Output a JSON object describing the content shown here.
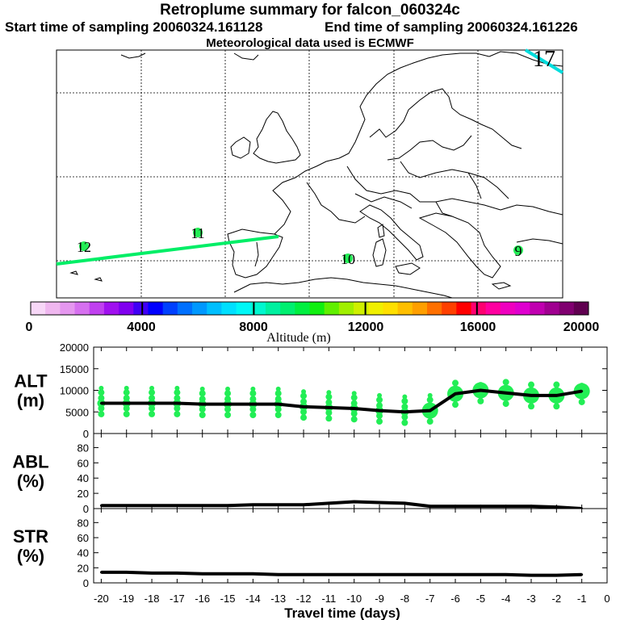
{
  "header": {
    "title": "Retroplume summary for falcon_060324c",
    "start": "Start time of sampling 20060324.161128",
    "end": "End time of sampling 20060324.161226",
    "met": "Meteorological data used is ECMWF"
  },
  "colors": {
    "track": "#00ee66",
    "track_cyan": "#00dddd",
    "marker": "#22ee55",
    "line": "#000000"
  },
  "map": {
    "labels": [
      {
        "text": "12",
        "id": "day-12-label"
      },
      {
        "text": "11",
        "id": "day-11-label"
      },
      {
        "text": "10",
        "id": "day-10-label"
      },
      {
        "text": "9",
        "id": "day-9-label"
      },
      {
        "text": "17",
        "id": "day-17-label"
      }
    ]
  },
  "colorbar": {
    "ticks": [
      "0",
      "4000",
      "8000",
      "12000",
      "16000",
      "20000"
    ],
    "label": "Altitude (m)",
    "colors": [
      "#f7d7f7",
      "#efb7ef",
      "#e597ef",
      "#d670ef",
      "#c040ef",
      "#a010ef",
      "#8000ef",
      "#4000f5",
      "#0000ff",
      "#0040ff",
      "#0070ff",
      "#0098ff",
      "#00bfff",
      "#00dfff",
      "#00f7f7",
      "#00f7cf",
      "#00f0a0",
      "#00ef70",
      "#00ef40",
      "#10ef10",
      "#60ef00",
      "#a0ef00",
      "#cfef00",
      "#f0ef00",
      "#ffdf00",
      "#ffbf00",
      "#ff9f00",
      "#ff7000",
      "#ff4000",
      "#ff0000",
      "#ff0070",
      "#ff00a0",
      "#ef00bf",
      "#df00cf",
      "#c000b0",
      "#a00090",
      "#800070",
      "#600050"
    ]
  },
  "chart_data": [
    {
      "type": "line",
      "id": "alt",
      "ylabel": "ALT\n(m)",
      "ylabel_lines": [
        "ALT",
        "(m)"
      ],
      "ylim": [
        0,
        20000
      ],
      "yticks": [
        "0",
        "5000",
        "10000",
        "15000",
        "20000"
      ],
      "x": [
        -20,
        -19,
        -18,
        -17,
        -16,
        -15,
        -14,
        -13,
        -12,
        -11,
        -10,
        -9,
        -8,
        -7,
        -6,
        -5,
        -4,
        -3,
        -2,
        -1
      ],
      "values": [
        7000,
        7000,
        7000,
        7000,
        6800,
        6800,
        6800,
        6800,
        6200,
        6000,
        5800,
        5300,
        5000,
        5300,
        9200,
        10000,
        9400,
        8800,
        8800,
        9800
      ]
    },
    {
      "type": "line",
      "id": "abl",
      "ylabel_lines": [
        "ABL",
        "(%)"
      ],
      "ylim": [
        0,
        90
      ],
      "yticks": [
        "0",
        "20",
        "40",
        "60",
        "80"
      ],
      "x": [
        -20,
        -19,
        -18,
        -17,
        -16,
        -15,
        -14,
        -13,
        -12,
        -11,
        -10,
        -9,
        -8,
        -7,
        -6,
        -5,
        -4,
        -3,
        -2,
        -1
      ],
      "values": [
        4,
        4,
        4,
        4,
        4,
        4,
        5,
        5,
        5,
        7,
        9,
        8,
        7,
        3,
        3,
        3,
        3,
        3,
        2,
        0
      ]
    },
    {
      "type": "line",
      "id": "str",
      "ylabel_lines": [
        "STR",
        "(%)"
      ],
      "ylim": [
        0,
        90
      ],
      "yticks": [
        "0",
        "20",
        "40",
        "60",
        "80"
      ],
      "x": [
        -20,
        -19,
        -18,
        -17,
        -16,
        -15,
        -14,
        -13,
        -12,
        -11,
        -10,
        -9,
        -8,
        -7,
        -6,
        -5,
        -4,
        -3,
        -2,
        -1
      ],
      "values": [
        14,
        14,
        13,
        13,
        12,
        12,
        12,
        11,
        11,
        11,
        11,
        11,
        11,
        11,
        11,
        11,
        11,
        10,
        10,
        11
      ]
    }
  ],
  "xaxis": {
    "ticks": [
      "-20",
      "-19",
      "-18",
      "-17",
      "-16",
      "-15",
      "-14",
      "-13",
      "-12",
      "-11",
      "-10",
      "-9",
      "-8",
      "-7",
      "-6",
      "-5",
      "-4",
      "-3",
      "-2",
      "-1",
      "0"
    ],
    "label": "Travel time (days)"
  }
}
